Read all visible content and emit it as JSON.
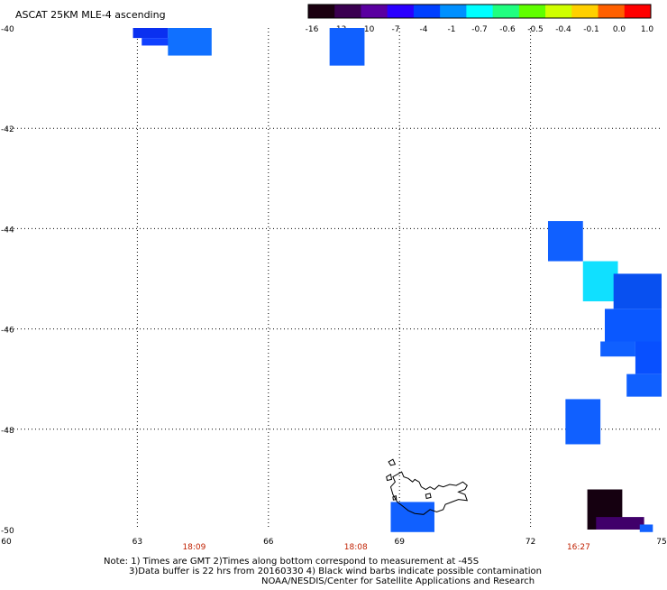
{
  "title": "ASCAT 25KM MLE-4 ascending",
  "colorbar": {
    "colors": [
      "#1a0010",
      "#3a0050",
      "#5a00a0",
      "#2a00ff",
      "#0040ff",
      "#0090ff",
      "#00ffff",
      "#20ff80",
      "#60ff00",
      "#d0ff00",
      "#ffd000",
      "#ff6000",
      "#ff0000"
    ],
    "labels": [
      "-16",
      "-13",
      "-10",
      "-7",
      "-4",
      "-1",
      "-0.7",
      "-0.6",
      "-0.5",
      "-0.4",
      "-0.1",
      "0.0",
      "1.0"
    ]
  },
  "y_axis": {
    "ticks": [
      {
        "value": -40,
        "label": "-40"
      },
      {
        "value": -42,
        "label": "-42"
      },
      {
        "value": -44,
        "label": "-44"
      },
      {
        "value": -46,
        "label": "-46"
      },
      {
        "value": -48,
        "label": "-48"
      },
      {
        "value": -50,
        "label": "-50"
      }
    ]
  },
  "x_axis": {
    "ticks": [
      {
        "value": 60,
        "label": "60"
      },
      {
        "value": 63,
        "label": "63"
      },
      {
        "value": 66,
        "label": "66"
      },
      {
        "value": 69,
        "label": "69"
      },
      {
        "value": 72,
        "label": "72"
      },
      {
        "value": 75,
        "label": "75"
      }
    ]
  },
  "pass_times": [
    {
      "lon": 64.3,
      "label": "18:09"
    },
    {
      "lon": 68.0,
      "label": "18:08"
    },
    {
      "lon": 73.1,
      "label": "16:27"
    }
  ],
  "cells": [
    {
      "lon0": 62.9,
      "lon1": 63.7,
      "lat0": -40.0,
      "lat1": -40.2,
      "color": "#0a30f0"
    },
    {
      "lon0": 63.1,
      "lon1": 63.8,
      "lat0": -40.2,
      "lat1": -40.35,
      "color": "#1040ff"
    },
    {
      "lon0": 63.7,
      "lon1": 64.7,
      "lat0": -40.0,
      "lat1": -40.55,
      "color": "#1070ff"
    },
    {
      "lon0": 67.4,
      "lon1": 68.2,
      "lat0": -40.0,
      "lat1": -40.75,
      "color": "#1060ff"
    },
    {
      "lon0": 72.4,
      "lon1": 73.2,
      "lat0": -43.85,
      "lat1": -44.65,
      "color": "#1060ff"
    },
    {
      "lon0": 73.2,
      "lon1": 74.0,
      "lat0": -44.65,
      "lat1": -45.45,
      "color": "#10e0ff"
    },
    {
      "lon0": 73.9,
      "lon1": 75.0,
      "lat0": -44.9,
      "lat1": -45.6,
      "color": "#0850f0"
    },
    {
      "lon0": 73.7,
      "lon1": 75.0,
      "lat0": -45.6,
      "lat1": -46.25,
      "color": "#0a58ff"
    },
    {
      "lon0": 73.6,
      "lon1": 74.4,
      "lat0": -46.25,
      "lat1": -46.55,
      "color": "#1060ff"
    },
    {
      "lon0": 74.4,
      "lon1": 75.0,
      "lat0": -46.25,
      "lat1": -46.9,
      "color": "#0850ff"
    },
    {
      "lon0": 74.2,
      "lon1": 75.0,
      "lat0": -46.9,
      "lat1": -47.35,
      "color": "#1060ff"
    },
    {
      "lon0": 72.8,
      "lon1": 73.6,
      "lat0": -47.4,
      "lat1": -48.3,
      "color": "#1060ff"
    },
    {
      "lon0": 73.3,
      "lon1": 74.1,
      "lat0": -49.2,
      "lat1": -50.0,
      "color": "#150010"
    },
    {
      "lon0": 73.5,
      "lon1": 74.6,
      "lat0": -49.75,
      "lat1": -50.0,
      "color": "#40006a"
    },
    {
      "lon0": 74.5,
      "lon1": 74.8,
      "lat0": -49.9,
      "lat1": -50.05,
      "color": "#1060ff"
    },
    {
      "lon0": 68.8,
      "lon1": 69.8,
      "lat0": -49.45,
      "lat1": -50.05,
      "color": "#1060ff"
    }
  ],
  "notes": {
    "line1": "Note: 1) Times are GMT 2)Times along bottom correspond to measurement at -45S",
    "line2": "3)Data buffer is 22 hrs from 20160330 4) Black wind barbs indicate possible contamination",
    "credit": "NOAA/NESDIS/Center for Satellite Applications and Research"
  }
}
